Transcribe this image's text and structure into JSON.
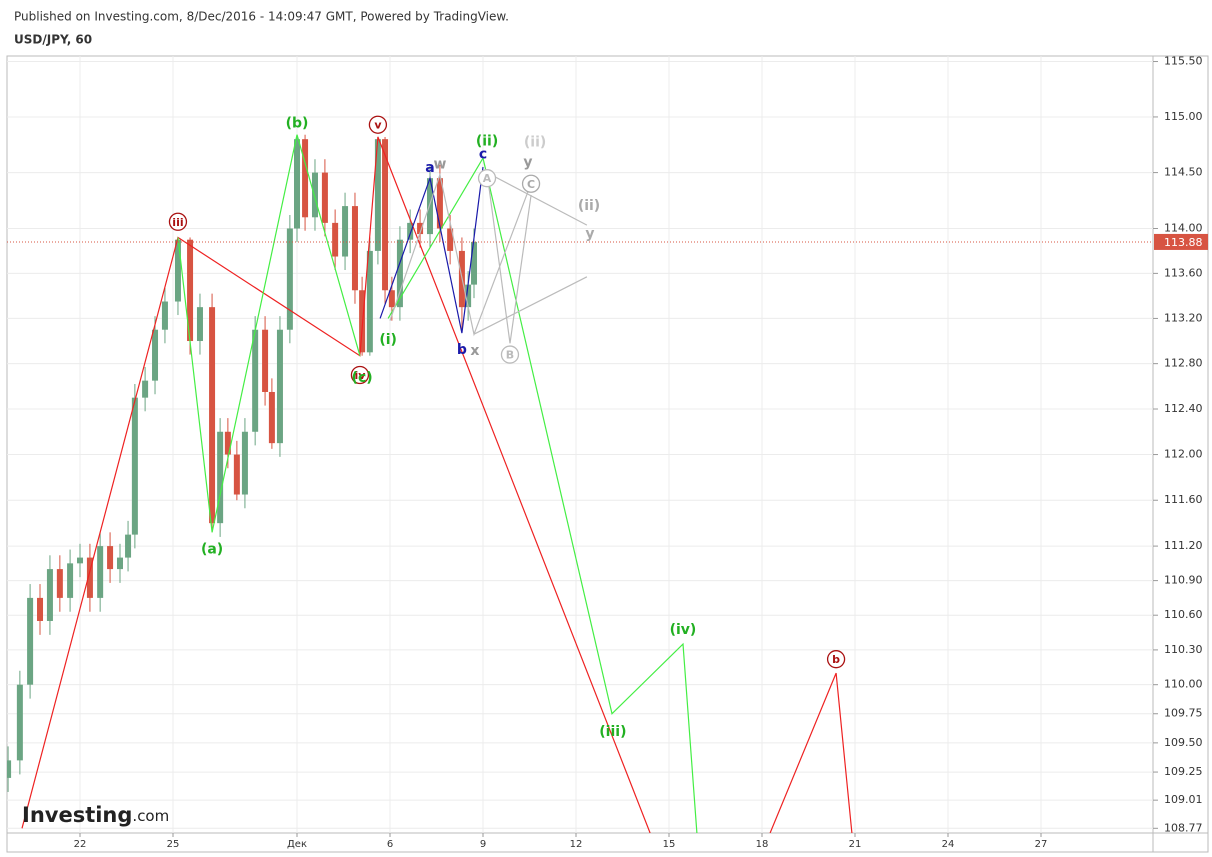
{
  "header": {
    "published": "Published on Investing.com, 8/Dec/2016 - 14:09:47 GMT, Powered by TradingView.",
    "symbol": "USD/JPY, 60"
  },
  "logo": {
    "name": "Investing",
    "suffix": ".com"
  },
  "chart_data": {
    "type": "candlestick",
    "log_scale": true,
    "grid": true,
    "up_color": "#6ba583",
    "down_color": "#d75442",
    "xlim": [
      19.645,
      56.613
    ],
    "xticks": [
      22,
      25,
      {
        "value": 29,
        "label": "Дек"
      },
      {
        "value": 32,
        "label": "6"
      },
      {
        "value": 35,
        "label": "9"
      },
      {
        "value": 38,
        "label": "12"
      },
      {
        "value": 41,
        "label": "15"
      },
      {
        "value": 44,
        "label": "18"
      },
      {
        "value": 47,
        "label": "21"
      },
      {
        "value": 50,
        "label": "24"
      },
      {
        "value": 53,
        "label": "27"
      }
    ],
    "ylim": [
      108.73,
      115.55
    ],
    "yticks": [
      {
        "value": 115.5,
        "label": "115.50"
      },
      {
        "value": 115,
        "label": "115.00"
      },
      {
        "value": 114.5,
        "label": "114.50"
      },
      {
        "value": 114,
        "label": "114.00"
      },
      {
        "value": 113.6,
        "label": "113.60"
      },
      {
        "value": 113.2,
        "label": "113.20"
      },
      {
        "value": 112.8,
        "label": "112.80"
      },
      {
        "value": 112.4,
        "label": "112.40"
      },
      {
        "value": 112,
        "label": "112.00"
      },
      {
        "value": 111.6,
        "label": "111.60"
      },
      {
        "value": 111.2,
        "label": "111.20"
      },
      {
        "value": 110.9,
        "label": "110.90"
      },
      {
        "value": 110.6,
        "label": "110.60"
      },
      {
        "value": 110.3,
        "label": "110.30"
      },
      {
        "value": 110,
        "label": "110.00"
      },
      109.75,
      {
        "value": 109.5,
        "label": "109.50"
      },
      109.25,
      109.01,
      108.77
    ],
    "x": [
      19.68,
      20.06,
      20.39,
      20.71,
      21.03,
      21.35,
      21.68,
      22.0,
      22.32,
      22.65,
      22.97,
      23.29,
      23.55,
      23.77,
      24.1,
      24.42,
      24.74,
      25.16,
      25.55,
      25.87,
      26.26,
      26.52,
      26.77,
      27.06,
      27.32,
      27.65,
      27.97,
      28.19,
      28.45,
      28.77,
      29.0,
      29.26,
      29.58,
      29.9,
      30.23,
      30.55,
      30.87,
      31.1,
      31.35,
      31.61,
      31.84,
      32.06,
      32.32,
      32.65,
      32.97,
      33.29,
      33.61,
      33.94,
      34.32,
      34.52,
      34.71
    ],
    "open": [
      109.2,
      109.35,
      110.0,
      110.75,
      110.55,
      111.0,
      110.75,
      111.05,
      111.1,
      110.75,
      111.2,
      111.0,
      111.1,
      111.3,
      112.5,
      112.65,
      113.1,
      113.35,
      113.9,
      113.0,
      113.3,
      111.4,
      112.2,
      112.0,
      111.65,
      112.2,
      113.1,
      112.55,
      112.1,
      113.1,
      114.0,
      114.8,
      114.1,
      114.5,
      114.05,
      113.75,
      114.2,
      113.45,
      112.9,
      113.8,
      114.8,
      113.45,
      113.3,
      113.9,
      114.05,
      113.95,
      114.45,
      114.0,
      113.8,
      113.3,
      113.5
    ],
    "high": [
      109.47,
      110.12,
      110.87,
      110.87,
      111.12,
      111.12,
      111.17,
      111.22,
      111.22,
      111.32,
      111.32,
      111.22,
      111.42,
      112.62,
      112.77,
      113.22,
      113.47,
      113.92,
      113.92,
      113.42,
      113.42,
      112.32,
      112.32,
      112.12,
      112.32,
      113.22,
      113.22,
      112.67,
      113.22,
      114.12,
      114.84,
      114.84,
      114.62,
      114.62,
      114.17,
      114.32,
      114.32,
      113.57,
      113.92,
      114.82,
      114.82,
      113.57,
      114.02,
      114.17,
      114.17,
      114.57,
      114.57,
      114.12,
      113.92,
      113.62,
      114.0
    ],
    "low": [
      109.08,
      109.23,
      109.88,
      110.43,
      110.43,
      110.63,
      110.63,
      110.93,
      110.63,
      110.63,
      110.88,
      110.88,
      110.98,
      111.18,
      112.38,
      112.53,
      112.98,
      113.23,
      112.88,
      112.88,
      111.32,
      111.28,
      111.88,
      111.6,
      111.53,
      112.08,
      112.43,
      112.05,
      111.98,
      112.98,
      113.88,
      113.98,
      113.98,
      113.93,
      113.63,
      113.63,
      113.33,
      112.87,
      112.87,
      113.68,
      113.33,
      113.18,
      113.18,
      113.78,
      113.83,
      113.83,
      113.88,
      113.68,
      113.08,
      113.18,
      113.38
    ],
    "close": [
      109.35,
      110.0,
      110.75,
      110.55,
      111.0,
      110.75,
      111.05,
      111.1,
      110.75,
      111.2,
      111.0,
      111.1,
      111.3,
      112.5,
      112.65,
      113.1,
      113.35,
      113.9,
      113.0,
      113.3,
      111.4,
      112.2,
      112.0,
      111.65,
      112.2,
      113.1,
      112.55,
      112.1,
      113.1,
      114.0,
      114.8,
      114.1,
      114.5,
      114.05,
      113.75,
      114.2,
      113.45,
      112.9,
      113.8,
      114.8,
      113.45,
      113.3,
      113.9,
      114.05,
      113.95,
      114.45,
      114.0,
      113.8,
      113.3,
      113.5,
      113.88
    ],
    "last_price": 113.88,
    "last_price_color": "#d75442",
    "wave_lines": [
      {
        "color": "#ee2222",
        "x": [
          20.13,
          25.16,
          31.03,
          31.61,
          40.39,
          42,
          44.26,
          46.39,
          46.9
        ],
        "values": [
          108.77,
          113.92,
          112.87,
          114.82,
          108.73,
          null,
          108.73,
          110.1,
          108.73
        ]
      },
      {
        "color": "#44ee44",
        "x": [
          25.16,
          26.26,
          29.0,
          31.03,
          31.5,
          31.94,
          35.0,
          39.16,
          41.45,
          41.9
        ],
        "values": [
          113.92,
          111.32,
          114.84,
          112.87,
          null,
          113.2,
          114.63,
          109.75,
          110.35,
          108.73
        ]
      },
      {
        "color": "#1a1aaa",
        "x": [
          31.68,
          33.29,
          34.32,
          35.0
        ],
        "values": [
          113.2,
          114.45,
          113.07,
          114.55
        ]
      },
      {
        "color": "#bbbbbb",
        "x": [
          32.0,
          33.61,
          34.71,
          36.45,
          36.0,
          35.13,
          35.87,
          36.55,
          36.0,
          35.13,
          38.35,
          36.0,
          34.71,
          38.35
        ],
        "values": [
          113.18,
          114.48,
          113.06,
          114.33,
          null,
          114.5,
          112.98,
          114.3,
          null,
          114.5,
          114.03,
          null,
          113.06,
          113.57
        ]
      }
    ],
    "annotations": [
      {
        "text": "iii",
        "x": 25.16,
        "y": 114.06,
        "color": "#aa1111",
        "circle": true
      },
      {
        "text": "v",
        "x": 31.61,
        "y": 114.93,
        "color": "#aa1111",
        "circle": true
      },
      {
        "text": "iv",
        "x": 31.03,
        "y": 112.7,
        "color": "#aa1111",
        "circle": true
      },
      {
        "text": "b",
        "x": 46.39,
        "y": 110.22,
        "color": "#aa1111",
        "circle": true
      },
      {
        "text": "(b)",
        "x": 29.0,
        "y": 114.95,
        "color": "#22b022"
      },
      {
        "text": "(a)",
        "x": 26.26,
        "y": 111.18,
        "color": "#22b022"
      },
      {
        "text": "(c)",
        "x": 31.1,
        "y": 112.68,
        "color": "#22b022"
      },
      {
        "text": "(i)",
        "x": 31.94,
        "y": 113.02,
        "color": "#22b022"
      },
      {
        "text": "(ii)",
        "x": 35.13,
        "y": 114.79,
        "color": "#22b022"
      },
      {
        "text": "(iii)",
        "x": 39.19,
        "y": 109.6,
        "color": "#22b022"
      },
      {
        "text": "(iv)",
        "x": 41.45,
        "y": 110.48,
        "color": "#22b022"
      },
      {
        "text": "a",
        "x": 33.29,
        "y": 114.55,
        "color": "#1a1aaa"
      },
      {
        "text": "b",
        "x": 34.32,
        "y": 112.93,
        "color": "#1a1aaa"
      },
      {
        "text": "c",
        "x": 35.0,
        "y": 114.67,
        "color": "#1a1aaa"
      },
      {
        "text": "w",
        "x": 33.61,
        "y": 114.58,
        "color": "#999999"
      },
      {
        "text": "x",
        "x": 34.74,
        "y": 112.92,
        "color": "#999999"
      },
      {
        "text": "y",
        "x": 36.45,
        "y": 114.6,
        "color": "#999999"
      },
      {
        "text": "(ii)",
        "x": 36.68,
        "y": 114.78,
        "color": "#cccccc"
      },
      {
        "text": "A",
        "x": 35.13,
        "y": 114.45,
        "color": "#bbbbbb",
        "circle": true
      },
      {
        "text": "B",
        "x": 35.87,
        "y": 112.88,
        "color": "#bbbbbb",
        "circle": true
      },
      {
        "text": "C",
        "x": 36.55,
        "y": 114.4,
        "color": "#aaaaaa",
        "circle": true
      },
      {
        "text": "(ii)",
        "x": 38.42,
        "y": 114.21,
        "color": "#aaaaaa"
      },
      {
        "text": "y",
        "x": 38.45,
        "y": 113.96,
        "color": "#aaaaaa"
      }
    ]
  }
}
